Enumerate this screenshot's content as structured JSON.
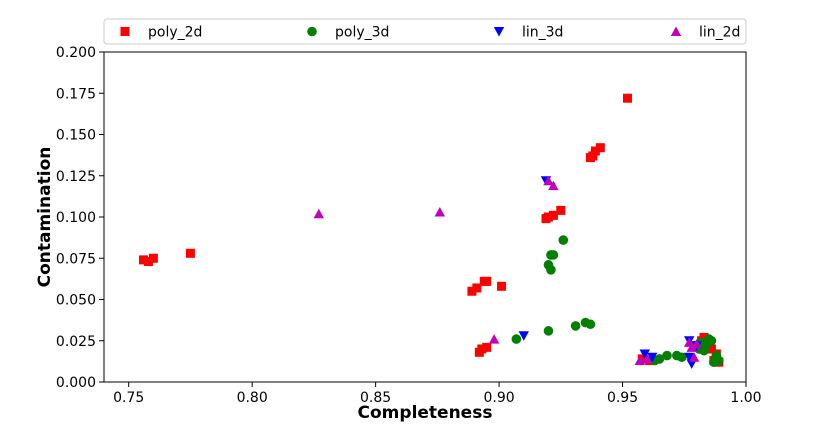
{
  "chart_data": {
    "type": "scatter",
    "title": "",
    "xlabel": "Completeness",
    "ylabel": "Contamination",
    "xlim": [
      0.74,
      1.0
    ],
    "ylim": [
      0.0,
      0.2
    ],
    "xticks": [
      "0.75",
      "0.80",
      "0.85",
      "0.90",
      "0.95",
      "1.00"
    ],
    "yticks": [
      "0.000",
      "0.025",
      "0.050",
      "0.075",
      "0.100",
      "0.125",
      "0.150",
      "0.175",
      "0.200"
    ],
    "legend_position": "top",
    "series": [
      {
        "name": "poly_2d",
        "marker": "square",
        "color": "#ff0000",
        "points": [
          [
            0.756,
            0.074
          ],
          [
            0.758,
            0.073
          ],
          [
            0.76,
            0.075
          ],
          [
            0.775,
            0.078
          ],
          [
            0.889,
            0.055
          ],
          [
            0.891,
            0.057
          ],
          [
            0.894,
            0.061
          ],
          [
            0.895,
            0.061
          ],
          [
            0.901,
            0.058
          ],
          [
            0.892,
            0.018
          ],
          [
            0.893,
            0.02
          ],
          [
            0.895,
            0.021
          ],
          [
            0.919,
            0.099
          ],
          [
            0.92,
            0.1
          ],
          [
            0.922,
            0.101
          ],
          [
            0.925,
            0.104
          ],
          [
            0.937,
            0.136
          ],
          [
            0.938,
            0.137
          ],
          [
            0.939,
            0.14
          ],
          [
            0.941,
            0.142
          ],
          [
            0.952,
            0.172
          ],
          [
            0.958,
            0.014
          ],
          [
            0.961,
            0.013
          ],
          [
            0.982,
            0.025
          ],
          [
            0.983,
            0.027
          ],
          [
            0.984,
            0.024
          ],
          [
            0.985,
            0.022
          ],
          [
            0.986,
            0.02
          ],
          [
            0.987,
            0.013
          ],
          [
            0.988,
            0.017
          ],
          [
            0.989,
            0.012
          ]
        ]
      },
      {
        "name": "poly_3d",
        "marker": "circle",
        "color": "#008000",
        "points": [
          [
            0.907,
            0.026
          ],
          [
            0.92,
            0.031
          ],
          [
            0.92,
            0.071
          ],
          [
            0.921,
            0.068
          ],
          [
            0.921,
            0.077
          ],
          [
            0.922,
            0.077
          ],
          [
            0.926,
            0.086
          ],
          [
            0.931,
            0.034
          ],
          [
            0.935,
            0.036
          ],
          [
            0.937,
            0.035
          ],
          [
            0.963,
            0.013
          ],
          [
            0.965,
            0.014
          ],
          [
            0.968,
            0.016
          ],
          [
            0.972,
            0.016
          ],
          [
            0.974,
            0.015
          ],
          [
            0.979,
            0.022
          ],
          [
            0.981,
            0.02
          ],
          [
            0.982,
            0.024
          ],
          [
            0.983,
            0.019
          ],
          [
            0.984,
            0.023
          ],
          [
            0.985,
            0.026
          ],
          [
            0.986,
            0.025
          ],
          [
            0.987,
            0.012
          ],
          [
            0.988,
            0.016
          ],
          [
            0.989,
            0.013
          ]
        ]
      },
      {
        "name": "lin_3d",
        "marker": "triangle-down",
        "color": "#0000ff",
        "points": [
          [
            0.91,
            0.028
          ],
          [
            0.919,
            0.122
          ],
          [
            0.959,
            0.017
          ],
          [
            0.962,
            0.015
          ],
          [
            0.977,
            0.025
          ],
          [
            0.977,
            0.015
          ],
          [
            0.978,
            0.011
          ],
          [
            0.98,
            0.022
          ]
        ]
      },
      {
        "name": "lin_2d",
        "marker": "triangle-up",
        "color": "#bf00bf",
        "points": [
          [
            0.827,
            0.102
          ],
          [
            0.876,
            0.103
          ],
          [
            0.898,
            0.026
          ],
          [
            0.92,
            0.122
          ],
          [
            0.922,
            0.119
          ],
          [
            0.957,
            0.013
          ],
          [
            0.96,
            0.014
          ],
          [
            0.977,
            0.024
          ],
          [
            0.978,
            0.021
          ],
          [
            0.979,
            0.015
          ],
          [
            0.98,
            0.023
          ]
        ]
      }
    ]
  }
}
